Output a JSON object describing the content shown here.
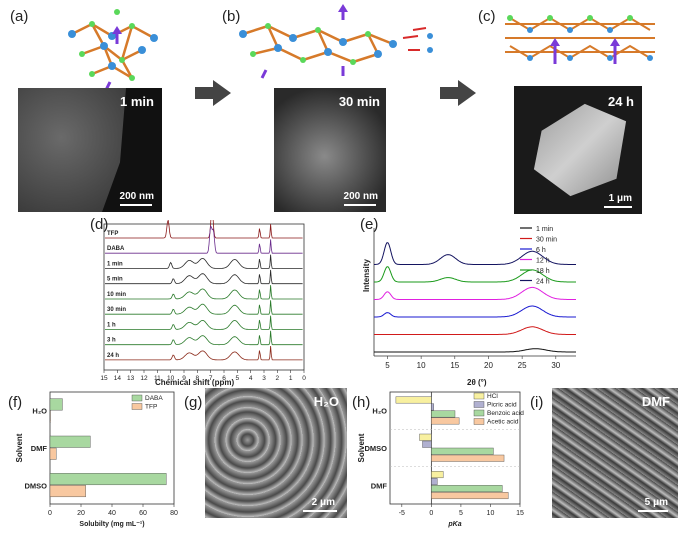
{
  "panels": {
    "a": {
      "label": "(a)",
      "time": "1 min",
      "scale": "200 nm"
    },
    "b": {
      "label": "(b)",
      "time": "30 min",
      "scale": "200 nm"
    },
    "c": {
      "label": "(c)",
      "time": "24 h",
      "scale": "1 μm"
    },
    "d": {
      "label": "(d)",
      "xlabel": "Chemical shift (ppm)",
      "traces": [
        "TFP",
        "DABA",
        "1 min",
        "5 min",
        "10 min",
        "30 min",
        "1 h",
        "3 h",
        "24 h"
      ]
    },
    "e": {
      "label": "(e)",
      "xlabel": "2θ (°)",
      "ylabel": "Intensity"
    },
    "f": {
      "label": "(f)",
      "ylabel": "Solvent",
      "xlabel": "Solubilty (mg mL⁻¹)"
    },
    "g": {
      "label": "(g)",
      "solvent": "H₂O",
      "scale": "2 μm"
    },
    "h": {
      "label": "(h)",
      "ylabel": "Solvent",
      "xlabel": "pKa"
    },
    "i": {
      "label": "(i)",
      "solvent": "DMF",
      "scale": "5 μm"
    }
  },
  "chart_data": [
    {
      "type": "line",
      "panel": "d",
      "xlabel": "Chemical shift (ppm)",
      "x_ticks": [
        15,
        14,
        13,
        12,
        11,
        10,
        9,
        8,
        7,
        6,
        5,
        4,
        3,
        2,
        1,
        0
      ],
      "xlim": [
        15,
        0
      ],
      "series_labels": [
        "TFP",
        "DABA",
        "1 min",
        "5 min",
        "10 min",
        "30 min",
        "1 h",
        "3 h",
        "24 h"
      ],
      "colors": [
        "#8b1a1a",
        "#6a2c8c",
        "#2a2a2a",
        "#2a2a2a",
        "#2a7a2a",
        "#2a7a2a",
        "#2a7a2a",
        "#2a7a2a",
        "#8b2a1a"
      ]
    },
    {
      "type": "line",
      "panel": "e",
      "xlabel": "2θ (°)",
      "ylabel": "Intensity",
      "x_ticks": [
        5,
        10,
        15,
        20,
        25,
        30
      ],
      "xlim": [
        3,
        33
      ],
      "series": [
        {
          "name": "1 min",
          "color": "#111111",
          "peaks": [
            [
              27,
              0.15
            ]
          ]
        },
        {
          "name": "30 min",
          "color": "#d11a1a",
          "peaks": [
            [
              26.5,
              0.35
            ]
          ]
        },
        {
          "name": "6 h",
          "color": "#1a1ad1",
          "peaks": [
            [
              5,
              0.2
            ],
            [
              26.5,
              0.5
            ]
          ]
        },
        {
          "name": "12 h",
          "color": "#e020e0",
          "peaks": [
            [
              5,
              0.35
            ],
            [
              26.5,
              0.55
            ]
          ]
        },
        {
          "name": "18 h",
          "color": "#1a9a1a",
          "peaks": [
            [
              5,
              0.7
            ],
            [
              14,
              0.2
            ],
            [
              26.5,
              0.55
            ]
          ]
        },
        {
          "name": "24 h",
          "color": "#141460",
          "peaks": [
            [
              5,
              1.0
            ],
            [
              14,
              0.45
            ],
            [
              26.5,
              0.6
            ]
          ]
        }
      ]
    },
    {
      "type": "bar",
      "panel": "f",
      "orientation": "horizontal",
      "categories": [
        "H₂O",
        "DMF",
        "DMSO"
      ],
      "series": [
        {
          "name": "DABA",
          "color": "#a8d8a0",
          "values": [
            8,
            26,
            75
          ]
        },
        {
          "name": "TFP",
          "color": "#f8c8a0",
          "values": [
            0,
            4,
            23
          ]
        }
      ],
      "x_ticks": [
        0,
        20,
        40,
        60,
        80
      ],
      "xlim": [
        0,
        80
      ],
      "xlabel": "Solubilty (mg mL⁻¹)",
      "ylabel": "Solvent"
    },
    {
      "type": "bar",
      "panel": "h",
      "orientation": "horizontal",
      "categories": [
        "H₂O",
        "DMSO",
        "DMF"
      ],
      "series": [
        {
          "name": "HCl",
          "color": "#f8f0a0",
          "values": [
            -6,
            -2,
            2
          ]
        },
        {
          "name": "Picric acid",
          "color": "#b0b0d0",
          "values": [
            0.4,
            -1.5,
            1
          ]
        },
        {
          "name": "Benzoic acid",
          "color": "#a8d8a0",
          "values": [
            4,
            10.5,
            12
          ]
        },
        {
          "name": "Acetic acid",
          "color": "#f8c8a0",
          "values": [
            4.7,
            12.3,
            13
          ]
        }
      ],
      "x_ticks": [
        -5,
        0,
        5,
        10,
        15
      ],
      "xlim": [
        -7,
        15
      ],
      "xlabel": "pKa",
      "ylabel": "Solvent"
    }
  ]
}
